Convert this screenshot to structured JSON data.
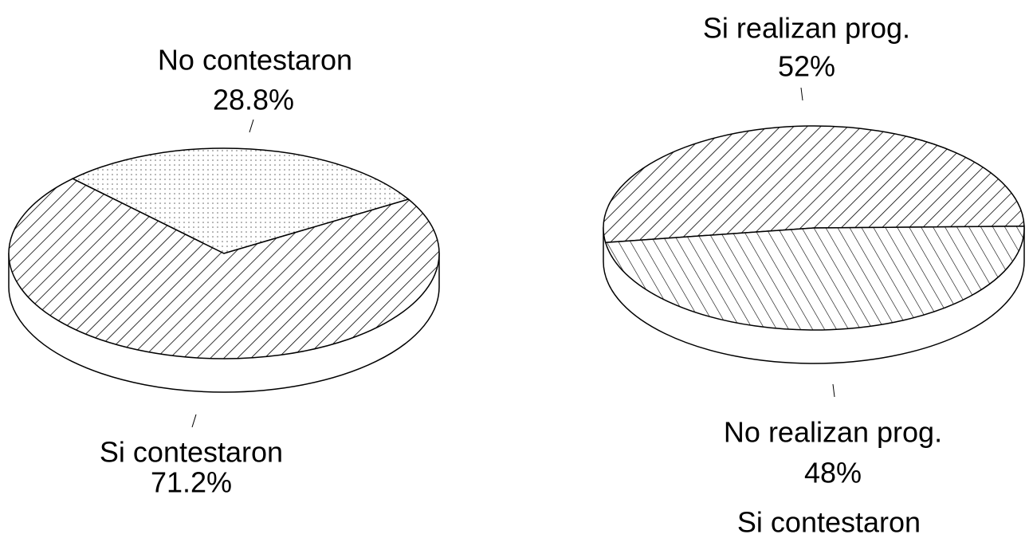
{
  "chart_data": [
    {
      "type": "pie",
      "categories": [
        "No contestaron",
        "Si contestaron"
      ],
      "values": [
        28.8,
        71.2
      ],
      "value_labels": [
        "28.8%",
        "71.2%"
      ]
    },
    {
      "type": "pie",
      "title": "Si contestaron",
      "categories": [
        "Si realizan prog.",
        "No realizan prog."
      ],
      "values": [
        52,
        48
      ],
      "value_labels": [
        "52%",
        "48%"
      ]
    }
  ]
}
